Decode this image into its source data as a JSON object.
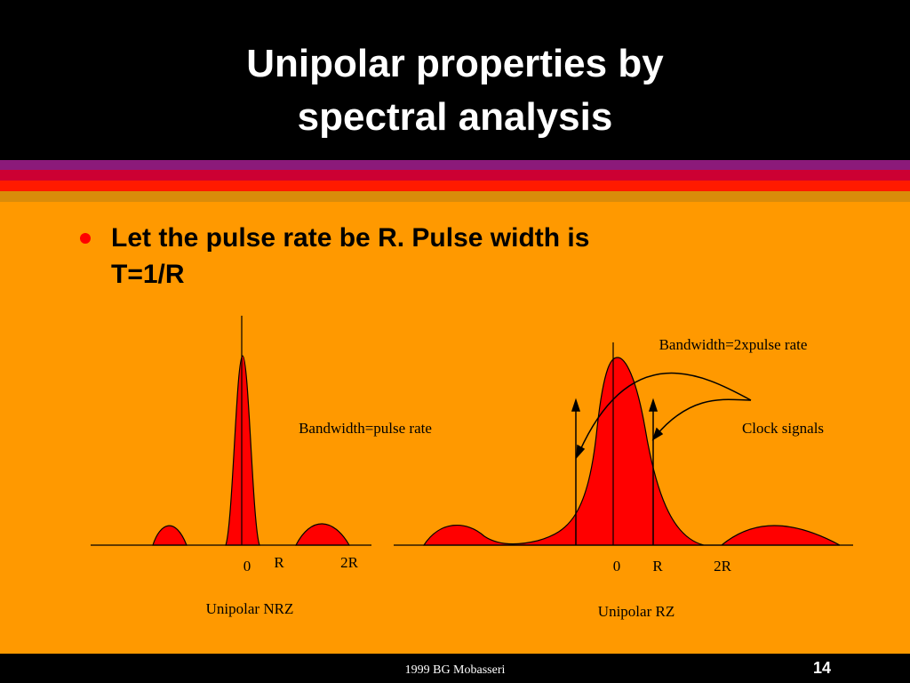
{
  "header": {
    "title_lines": [
      "Unipolar properties by",
      "spectral analysis"
    ]
  },
  "bullet": {
    "lines": [
      "Let the pulse rate be R. Pulse width is",
      "T=1/R"
    ]
  },
  "diagrams": [
    {
      "caption": "Unipolar NRZ",
      "annotation": "Bandwidth=pulse rate",
      "axis_labels": [
        "0",
        "R",
        "2R"
      ]
    },
    {
      "caption": "Unipolar RZ",
      "annotation": "Bandwidth=2xpulse  rate",
      "arrow_label": "Clock signals",
      "axis_labels": [
        "0",
        "R",
        "2R"
      ]
    }
  ],
  "footer": {
    "credit": "1999 BG Mobasseri",
    "page": "14"
  }
}
